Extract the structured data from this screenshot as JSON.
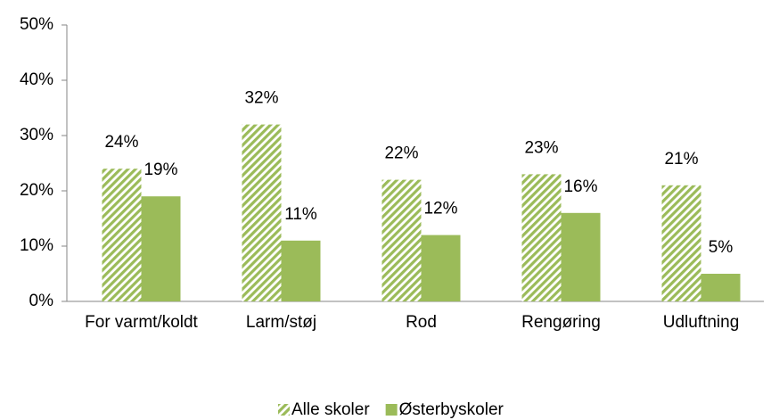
{
  "chart_data": {
    "type": "bar",
    "categories": [
      "For varmt/koldt",
      "Larm/støj",
      "Rod",
      "Rengøring",
      "Udluftning"
    ],
    "series": [
      {
        "name": "Alle skoler",
        "color": "#9bbb59",
        "pattern": "hatch",
        "values": [
          24,
          32,
          22,
          23,
          21
        ],
        "value_labels": [
          "24%",
          "32%",
          "22%",
          "23%",
          "21%"
        ]
      },
      {
        "name": "Østerbyskoler",
        "color": "#9bbb59",
        "values": [
          19,
          11,
          12,
          16,
          5
        ],
        "value_labels": [
          "19%",
          "11%",
          "12%",
          "16%",
          "5%"
        ]
      }
    ],
    "ylim": [
      0,
      50
    ],
    "yticks": [
      {
        "value": 0,
        "label": "0%"
      },
      {
        "value": 10,
        "label": "10%"
      },
      {
        "value": 20,
        "label": "20%"
      },
      {
        "value": 30,
        "label": "30%"
      },
      {
        "value": 40,
        "label": "40%"
      },
      {
        "value": 50,
        "label": "50%"
      }
    ],
    "legend": "bottom"
  }
}
